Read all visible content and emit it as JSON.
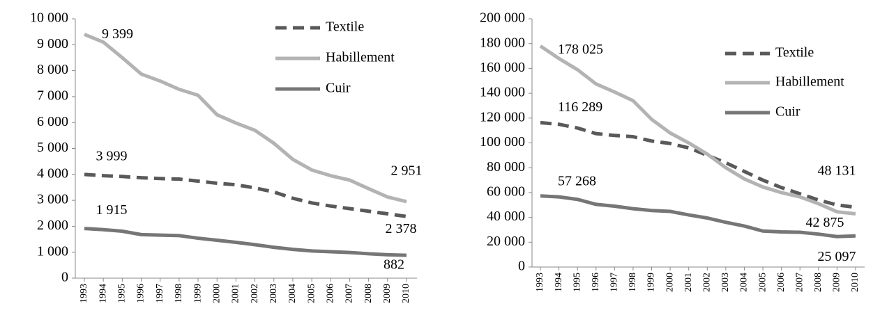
{
  "chart_data": [
    {
      "type": "line",
      "categories": [
        "1993",
        "1994",
        "1995",
        "1996",
        "1997",
        "1998",
        "1999",
        "2000",
        "2001",
        "2002",
        "2003",
        "2004",
        "2005",
        "2006",
        "2007",
        "2008",
        "2009",
        "2010"
      ],
      "series": [
        {
          "name": "Textile",
          "color": "#595959",
          "dashed": true,
          "values": [
            3999,
            3950,
            3920,
            3870,
            3840,
            3820,
            3740,
            3660,
            3600,
            3480,
            3320,
            3080,
            2900,
            2780,
            2680,
            2580,
            2480,
            2378
          ],
          "value_labels": [
            "3 999",
            null,
            null,
            null,
            null,
            null,
            null,
            null,
            null,
            null,
            null,
            null,
            null,
            null,
            null,
            null,
            null,
            "2 378"
          ]
        },
        {
          "name": "Habillement",
          "color": "#b3b3b3",
          "dashed": false,
          "values": [
            9399,
            9100,
            8500,
            7870,
            7600,
            7280,
            7050,
            6300,
            5980,
            5700,
            5200,
            4580,
            4170,
            3950,
            3780,
            3450,
            3130,
            2951
          ],
          "value_labels": [
            "9 399",
            null,
            null,
            null,
            null,
            null,
            null,
            null,
            null,
            null,
            null,
            null,
            null,
            null,
            null,
            null,
            null,
            "2 951"
          ]
        },
        {
          "name": "Cuir",
          "color": "#767676",
          "dashed": false,
          "values": [
            1915,
            1870,
            1810,
            1680,
            1660,
            1640,
            1540,
            1460,
            1380,
            1290,
            1190,
            1110,
            1050,
            1020,
            990,
            940,
            900,
            882
          ],
          "value_labels": [
            "1 915",
            null,
            null,
            null,
            null,
            null,
            null,
            null,
            null,
            null,
            null,
            null,
            null,
            null,
            null,
            null,
            null,
            "882"
          ]
        }
      ],
      "ylim": [
        0,
        10000
      ],
      "yticks": [
        0,
        {
          "value": 1000,
          "label": "1 000"
        },
        {
          "value": 2000,
          "label": "2 000"
        },
        {
          "value": 3000,
          "label": "3 000"
        },
        {
          "value": 4000,
          "label": "4 000"
        },
        {
          "value": 5000,
          "label": "5 000"
        },
        {
          "value": 6000,
          "label": "6 000"
        },
        {
          "value": 7000,
          "label": "7 000"
        },
        {
          "value": 8000,
          "label": "8 000"
        },
        {
          "value": 9000,
          "label": "9 000"
        },
        {
          "value": 10000,
          "label": "10 000"
        }
      ],
      "legend": "upper right"
    },
    {
      "type": "line",
      "categories": [
        "1993",
        "1994",
        "1995",
        "1996",
        "1997",
        "1998",
        "1999",
        "2000",
        "2001",
        "2002",
        "2003",
        "2004",
        "2005",
        "2006",
        "2007",
        "2008",
        "2009",
        "2010"
      ],
      "series": [
        {
          "name": "Textile",
          "color": "#595959",
          "dashed": true,
          "values": [
            116289,
            115000,
            112000,
            107500,
            106000,
            105000,
            101500,
            99500,
            96000,
            90000,
            84000,
            77000,
            70000,
            64000,
            59000,
            54000,
            50000,
            48131
          ],
          "value_labels": [
            "116 289",
            null,
            null,
            null,
            null,
            null,
            null,
            null,
            null,
            null,
            null,
            null,
            null,
            null,
            null,
            null,
            null,
            "48 131"
          ]
        },
        {
          "name": "Habillement",
          "color": "#b3b3b3",
          "dashed": false,
          "values": [
            178025,
            168000,
            159000,
            147500,
            141000,
            134000,
            119000,
            108000,
            100000,
            91000,
            80000,
            71000,
            64500,
            60000,
            56500,
            51000,
            44500,
            42875
          ],
          "value_labels": [
            "178 025",
            null,
            null,
            null,
            null,
            null,
            null,
            null,
            null,
            null,
            null,
            null,
            null,
            null,
            null,
            null,
            null,
            "42 875"
          ]
        },
        {
          "name": "Cuir",
          "color": "#767676",
          "dashed": false,
          "values": [
            57268,
            56500,
            54500,
            50500,
            49000,
            47000,
            45500,
            44800,
            42000,
            39500,
            36000,
            33000,
            29000,
            28300,
            28000,
            26500,
            24500,
            25097
          ],
          "value_labels": [
            "57 268",
            null,
            null,
            null,
            null,
            null,
            null,
            null,
            null,
            null,
            null,
            null,
            null,
            null,
            null,
            null,
            null,
            "25 097"
          ]
        }
      ],
      "ylim": [
        0,
        200000
      ],
      "yticks": [
        0,
        {
          "value": 20000,
          "label": "20 000"
        },
        {
          "value": 40000,
          "label": "40 000"
        },
        {
          "value": 60000,
          "label": "60 000"
        },
        {
          "value": 80000,
          "label": "80 000"
        },
        {
          "value": 100000,
          "label": "100 000"
        },
        {
          "value": 120000,
          "label": "120 000"
        },
        {
          "value": 140000,
          "label": "140 000"
        },
        {
          "value": 160000,
          "label": "160 000"
        },
        {
          "value": 180000,
          "label": "180 000"
        },
        {
          "value": 200000,
          "label": "200 000"
        }
      ],
      "legend": "right"
    }
  ]
}
